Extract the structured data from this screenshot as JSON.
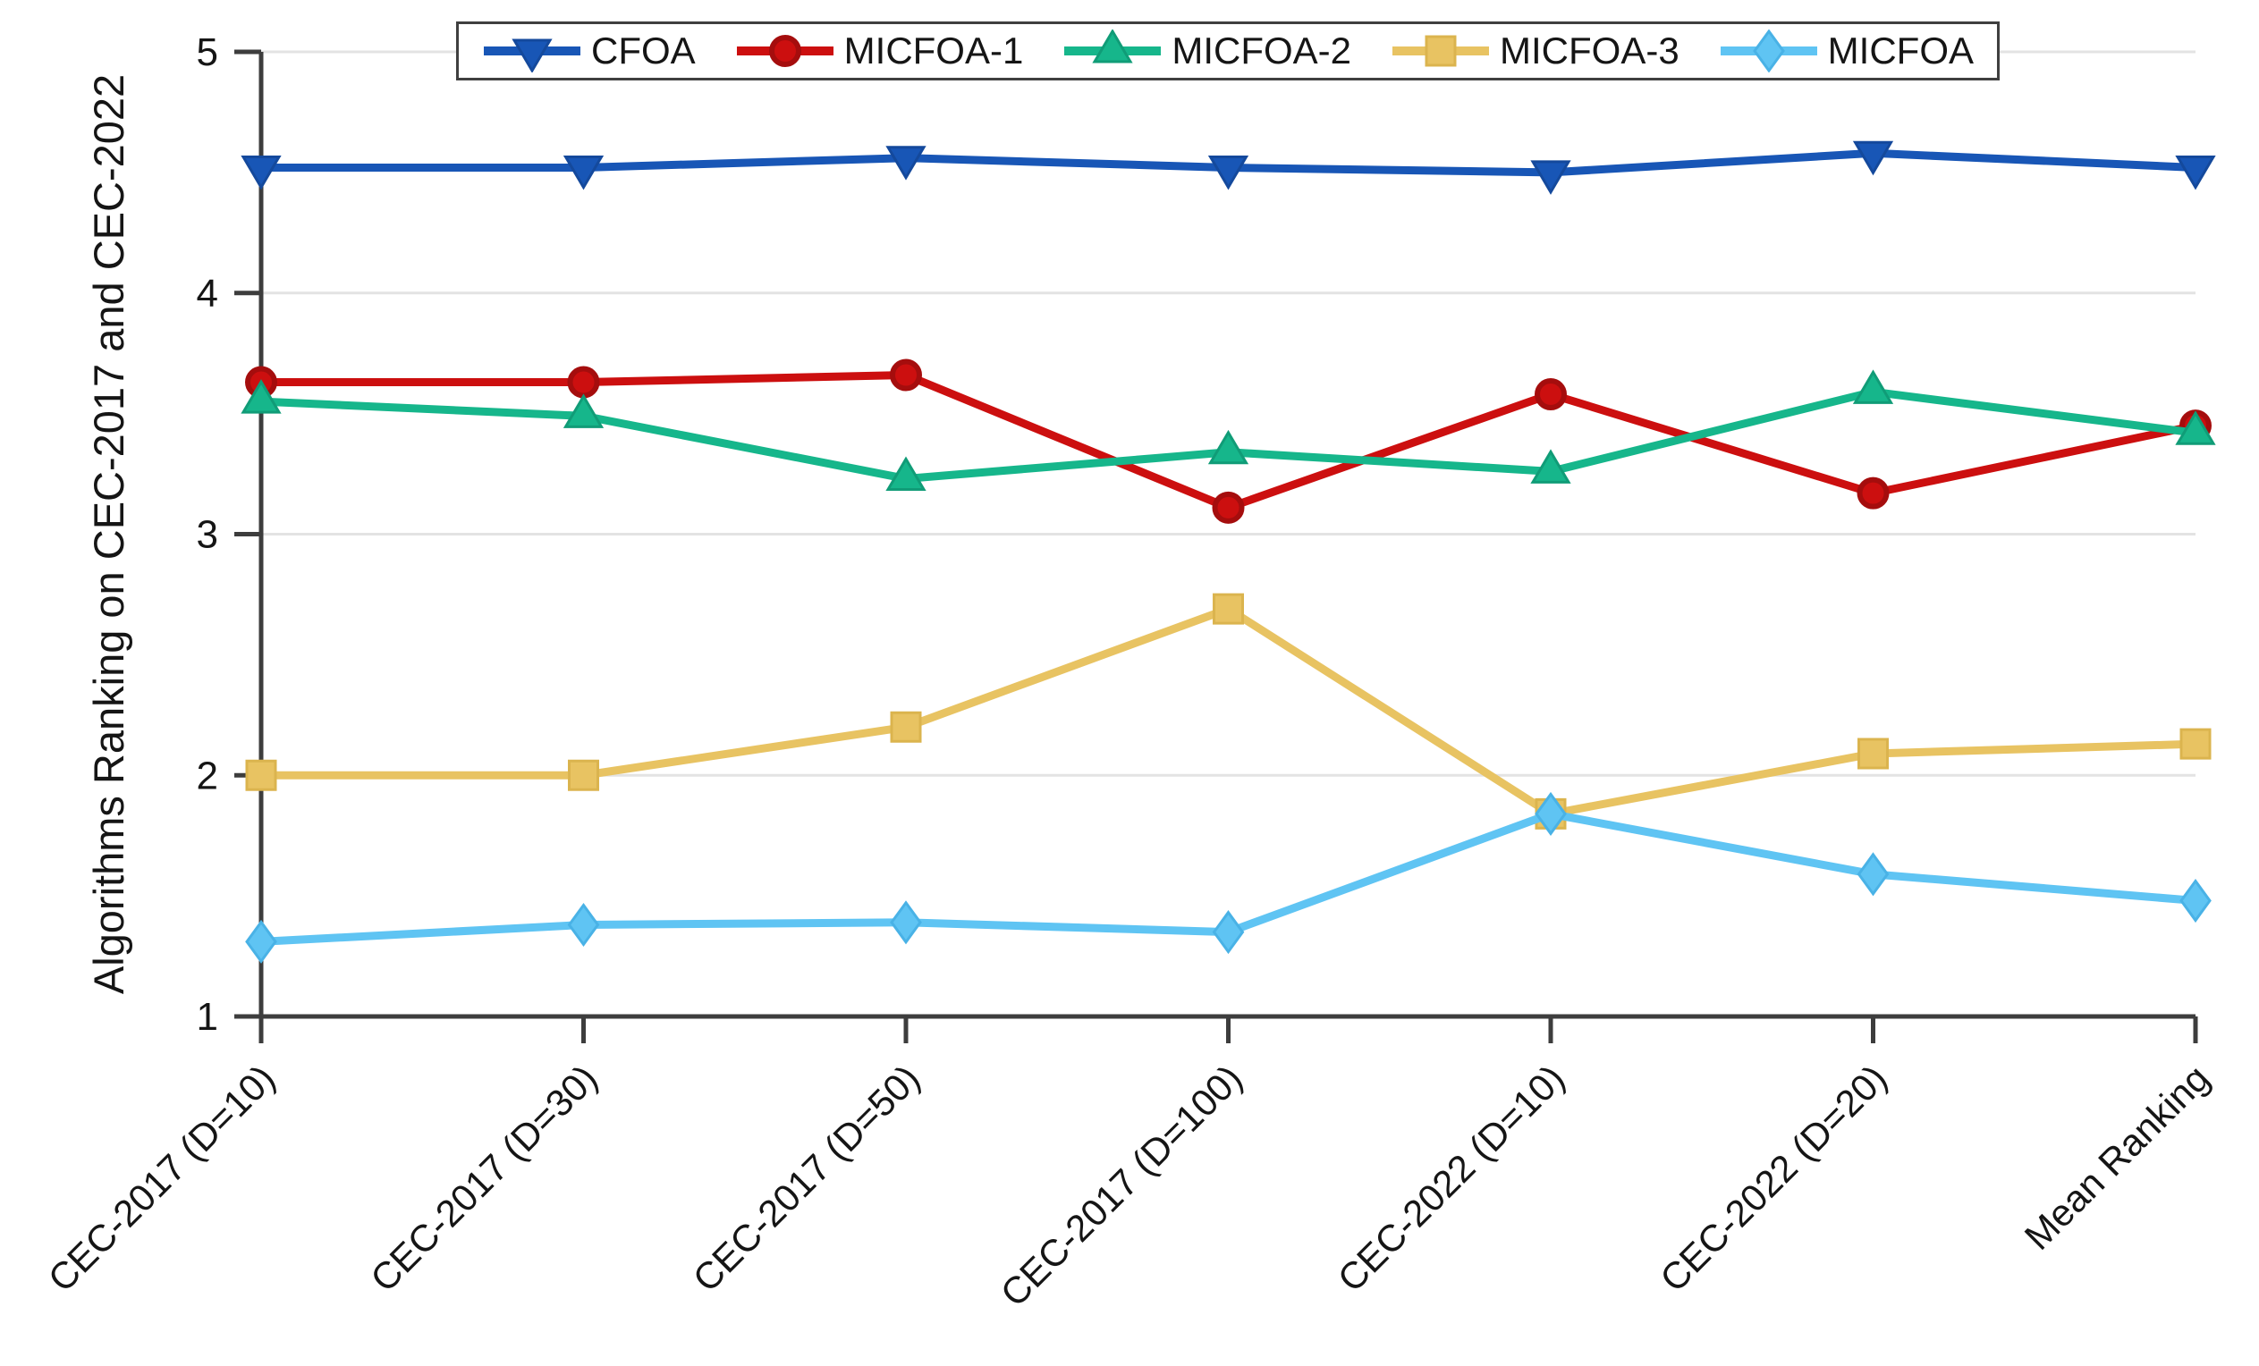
{
  "chart_data": {
    "type": "line",
    "title": "",
    "xlabel": "",
    "ylabel": "Algorithms Ranking on CEC-2017 and CEC-2022",
    "categories": [
      "CEC-2017 (D=10)",
      "CEC-2017 (D=30)",
      "CEC-2017 (D=50)",
      "CEC-2017 (D=100)",
      "CEC-2022 (D=10)",
      "CEC-2022 (D=20)",
      "Mean Ranking"
    ],
    "series": [
      {
        "name": "CFOA",
        "color": "#1856b6",
        "edge": "#14499c",
        "marker": "triangle-down",
        "values": [
          4.52,
          4.52,
          4.56,
          4.52,
          4.5,
          4.58,
          4.52
        ]
      },
      {
        "name": "MICFOA-1",
        "color": "#cc0f0f",
        "edge": "#a50d0d",
        "marker": "circle",
        "values": [
          3.63,
          3.63,
          3.66,
          3.11,
          3.58,
          3.17,
          3.45
        ]
      },
      {
        "name": "MICFOA-2",
        "color": "#16b68b",
        "edge": "#109c77",
        "marker": "triangle-up",
        "values": [
          3.55,
          3.49,
          3.23,
          3.34,
          3.26,
          3.59,
          3.42
        ]
      },
      {
        "name": "MICFOA-3",
        "color": "#e8c362",
        "edge": "#dbb44e",
        "marker": "square",
        "values": [
          2.0,
          2.0,
          2.2,
          2.69,
          1.84,
          2.09,
          2.13
        ]
      },
      {
        "name": "MICFOA",
        "color": "#5fc4f3",
        "edge": "#49b2e6",
        "marker": "diamond",
        "values": [
          1.31,
          1.38,
          1.39,
          1.35,
          1.84,
          1.59,
          1.48
        ]
      }
    ],
    "ylim": [
      1,
      5
    ],
    "yticks": [
      1,
      2,
      3,
      4,
      5
    ],
    "grid": "horizontal",
    "legend_position": "top-center"
  },
  "colors": {
    "axis": "#3d3d3d",
    "grid": "#e3e3e3",
    "text": "#151515",
    "background": "#ffffff",
    "legend_border": "#3f3f3f"
  }
}
